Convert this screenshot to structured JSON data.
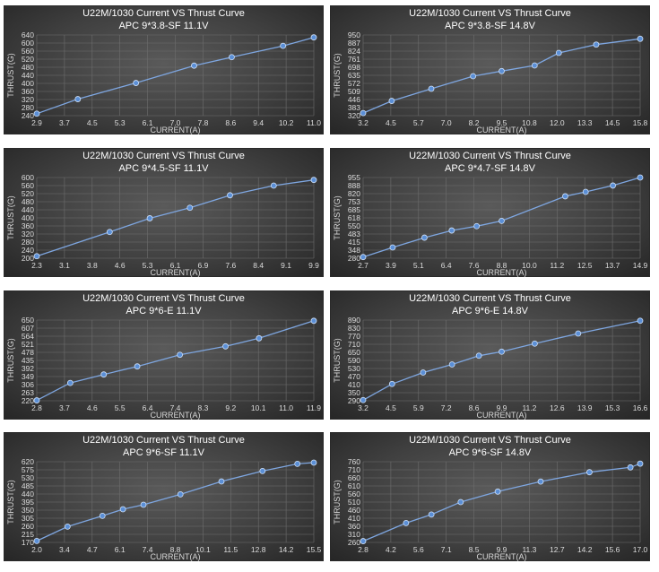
{
  "chart_data": [
    {
      "type": "line",
      "title": "U22M/1030  Current VS Thrust Curve",
      "subtitle": "APC 9*3.8-SF   11.1V",
      "xlabel": "CURRENT(A)",
      "ylabel": "THRUST(G)",
      "xticks": [
        "2.9",
        "3.7",
        "4.5",
        "5.3",
        "6.1",
        "7.0",
        "7.8",
        "8.6",
        "9.4",
        "10.2",
        "11.0"
      ],
      "yticks": [
        "240",
        "280",
        "320",
        "360",
        "400",
        "440",
        "480",
        "520",
        "560",
        "600",
        "640"
      ],
      "xlim": [
        2.9,
        11.0
      ],
      "ylim": [
        240,
        640
      ],
      "grid": true,
      "x": [
        2.9,
        4.1,
        5.8,
        7.5,
        8.6,
        10.1,
        11.0
      ],
      "y": [
        250,
        322,
        402,
        488,
        530,
        586,
        628
      ]
    },
    {
      "type": "line",
      "title": "U22M/1030  Current VS Thrust Curve",
      "subtitle": "APC 9*3.8-SF   14.8V",
      "xlabel": "CURRENT(A)",
      "ylabel": "THRUST(G)",
      "xticks": [
        "3.2",
        "4.5",
        "5.7",
        "7.0",
        "8.2",
        "9.5",
        "10.8",
        "12.0",
        "13.3",
        "14.5",
        "15.8"
      ],
      "yticks": [
        "320",
        "383",
        "446",
        "509",
        "572",
        "635",
        "698",
        "761",
        "824",
        "887",
        "950"
      ],
      "xlim": [
        3.2,
        15.8
      ],
      "ylim": [
        320,
        950
      ],
      "grid": true,
      "x": [
        3.2,
        4.5,
        6.3,
        8.2,
        9.5,
        11.0,
        12.1,
        13.8,
        15.8
      ],
      "y": [
        340,
        435,
        530,
        628,
        668,
        712,
        810,
        875,
        920
      ]
    },
    {
      "type": "line",
      "title": "U22M/1030  Current VS Thrust Curve",
      "subtitle": "APC 9*4.5-SF   11.1V",
      "xlabel": "CURRENT(A)",
      "ylabel": "THRUST(G)",
      "xticks": [
        "2.3",
        "3.1",
        "3.8",
        "4.6",
        "5.3",
        "6.1",
        "6.9",
        "7.6",
        "8.4",
        "9.1",
        "9.9"
      ],
      "yticks": [
        "200",
        "240",
        "280",
        "320",
        "360",
        "400",
        "440",
        "480",
        "520",
        "560",
        "600"
      ],
      "xlim": [
        2.3,
        9.9
      ],
      "ylim": [
        200,
        600
      ],
      "grid": true,
      "x": [
        2.3,
        4.3,
        5.4,
        6.5,
        7.6,
        8.8,
        9.9
      ],
      "y": [
        210,
        330,
        398,
        450,
        512,
        560,
        588
      ]
    },
    {
      "type": "line",
      "title": "U22M/1030  Current VS Thrust Curve",
      "subtitle": "APC 9*4.7-SF   14.8V",
      "xlabel": "CURRENT(A)",
      "ylabel": "THRUST(G)",
      "xticks": [
        "2.7",
        "3.9",
        "5.1",
        "6.4",
        "7.6",
        "8.8",
        "10.0",
        "11.2",
        "12.5",
        "13.7",
        "14.9"
      ],
      "yticks": [
        "280",
        "348",
        "415",
        "483",
        "550",
        "618",
        "685",
        "753",
        "820",
        "888",
        "955"
      ],
      "xlim": [
        2.7,
        14.9
      ],
      "ylim": [
        280,
        955
      ],
      "grid": true,
      "x": [
        2.7,
        4.0,
        5.4,
        6.6,
        7.7,
        8.8,
        11.6,
        12.5,
        13.7,
        14.9
      ],
      "y": [
        290,
        370,
        452,
        512,
        548,
        592,
        798,
        835,
        888,
        955
      ]
    },
    {
      "type": "line",
      "title": "U22M/1030  Current VS Thrust Curve",
      "subtitle": "APC 9*6-E   11.1V",
      "xlabel": "CURRENT(A)",
      "ylabel": "THRUST(G)",
      "xticks": [
        "2.8",
        "3.7",
        "4.6",
        "5.5",
        "6.4",
        "7.4",
        "8.3",
        "9.2",
        "10.1",
        "11.0",
        "11.9"
      ],
      "yticks": [
        "220",
        "263",
        "306",
        "349",
        "392",
        "435",
        "478",
        "521",
        "564",
        "607",
        "650"
      ],
      "xlim": [
        2.8,
        11.9
      ],
      "ylim": [
        220,
        650
      ],
      "grid": true,
      "x": [
        2.8,
        3.9,
        5.0,
        6.1,
        7.5,
        9.0,
        10.1,
        11.9
      ],
      "y": [
        222,
        315,
        360,
        403,
        465,
        510,
        553,
        646
      ]
    },
    {
      "type": "line",
      "title": "U22M/1030  Current VS Thrust Curve",
      "subtitle": "APC 9*6-E   14.8V",
      "xlabel": "CURRENT(A)",
      "ylabel": "THRUST(G)",
      "xticks": [
        "3.2",
        "4.5",
        "5.9",
        "7.2",
        "8.6",
        "9.9",
        "11.2",
        "12.6",
        "13.9",
        "15.3",
        "16.6"
      ],
      "yticks": [
        "290",
        "350",
        "410",
        "470",
        "530",
        "590",
        "650",
        "710",
        "770",
        "830",
        "890"
      ],
      "xlim": [
        3.2,
        16.6
      ],
      "ylim": [
        290,
        890
      ],
      "grid": true,
      "x": [
        3.2,
        4.6,
        6.1,
        7.5,
        8.8,
        9.9,
        11.5,
        13.6,
        16.6
      ],
      "y": [
        295,
        415,
        500,
        560,
        625,
        655,
        715,
        790,
        885
      ]
    },
    {
      "type": "line",
      "title": "U22M/1030  Current VS Thrust Curve",
      "subtitle": "APC 9*6-SF   11.1V",
      "xlabel": "CURRENT(A)",
      "ylabel": "THRUST(G)",
      "xticks": [
        "2.0",
        "3.4",
        "4.7",
        "6.1",
        "7.4",
        "8.8",
        "10.1",
        "11.5",
        "12.8",
        "14.2",
        "15.5"
      ],
      "yticks": [
        "170",
        "215",
        "260",
        "305",
        "350",
        "395",
        "440",
        "485",
        "530",
        "575",
        "620"
      ],
      "xlim": [
        2.0,
        15.5
      ],
      "ylim": [
        170,
        620
      ],
      "grid": true,
      "x": [
        2.0,
        3.5,
        5.2,
        6.2,
        7.2,
        9.0,
        11.0,
        13.0,
        14.7,
        15.5
      ],
      "y": [
        178,
        258,
        318,
        355,
        380,
        438,
        510,
        568,
        608,
        615
      ]
    },
    {
      "type": "line",
      "title": "U22M/1030  Current VS Thrust Curve",
      "subtitle": "APC 9*6-SF   14.8V",
      "xlabel": "CURRENT(A)",
      "ylabel": "THRUST(G)",
      "xticks": [
        "2.8",
        "4.2",
        "5.6",
        "7.1",
        "8.5",
        "9.9",
        "11.3",
        "12.7",
        "14.2",
        "15.6",
        "17.0"
      ],
      "yticks": [
        "260",
        "310",
        "360",
        "410",
        "460",
        "510",
        "560",
        "610",
        "660",
        "710",
        "760"
      ],
      "xlim": [
        2.8,
        17.0
      ],
      "ylim": [
        260,
        760
      ],
      "grid": true,
      "x": [
        2.8,
        5.0,
        6.3,
        7.8,
        9.7,
        11.9,
        14.4,
        16.5,
        17.0
      ],
      "y": [
        268,
        380,
        433,
        510,
        575,
        637,
        695,
        725,
        748
      ]
    }
  ],
  "style": {
    "line_color": "#7ea6e0",
    "marker_color": "#5b8fd6",
    "grid_color": "#6e6e6e"
  }
}
